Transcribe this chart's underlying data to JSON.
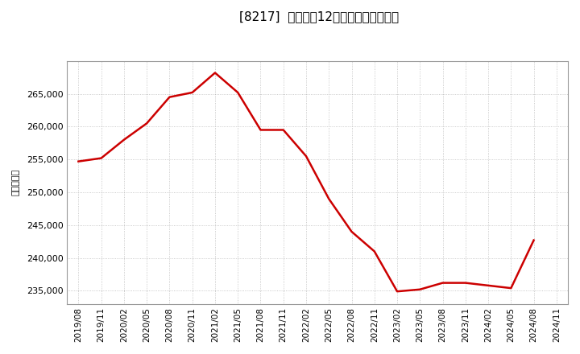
{
  "title": "[8217]  売上高の12か月移動合計の推移",
  "ylabel": "（百万円）",
  "line_color": "#cc0000",
  "background_color": "#ffffff",
  "plot_bg_color": "#ffffff",
  "grid_color": "#aaaaaa",
  "dates": [
    "2019/08",
    "2019/11",
    "2020/02",
    "2020/05",
    "2020/08",
    "2020/11",
    "2021/02",
    "2021/05",
    "2021/08",
    "2021/11",
    "2022/02",
    "2022/05",
    "2022/08",
    "2022/11",
    "2023/02",
    "2023/05",
    "2023/08",
    "2023/11",
    "2024/02",
    "2024/05",
    "2024/08",
    "2024/11"
  ],
  "values": [
    254700,
    255200,
    258000,
    260500,
    264500,
    265200,
    268200,
    265200,
    259500,
    259500,
    255500,
    249000,
    244000,
    241000,
    234900,
    235200,
    236200,
    236200,
    235800,
    235400,
    242700,
    null
  ],
  "ylim": [
    233000,
    270000
  ],
  "yticks": [
    235000,
    240000,
    245000,
    250000,
    255000,
    260000,
    265000
  ],
  "linewidth": 1.8,
  "figsize": [
    7.2,
    4.4
  ],
  "dpi": 100
}
